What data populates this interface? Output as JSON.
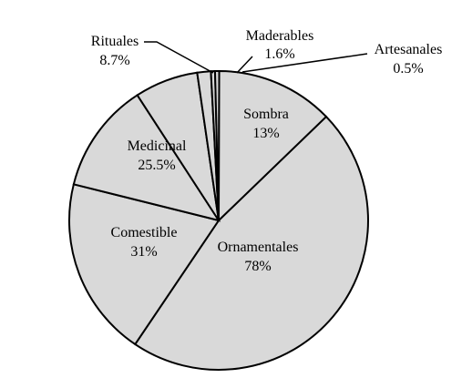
{
  "chart_data": {
    "type": "pie",
    "title": "",
    "slices": [
      {
        "name": "Ornamentales",
        "value_label": "78%",
        "value": 78
      },
      {
        "name": "Comestible",
        "value_label": "31%",
        "value": 31
      },
      {
        "name": "Medicinal",
        "value_label": "25.5%",
        "value": 25.5
      },
      {
        "name": "Rituales",
        "value_label": "8.7%",
        "value": 8.7
      },
      {
        "name": "Maderables",
        "value_label": "1.6%",
        "value": 1.6
      },
      {
        "name": "Artesanales",
        "value_label": "0.5%",
        "value": 0.5
      },
      {
        "name": "Sombra",
        "value_label": "13%",
        "value": 13
      }
    ],
    "slice_color": "#d9d9d9",
    "edge_color": "#000000"
  }
}
